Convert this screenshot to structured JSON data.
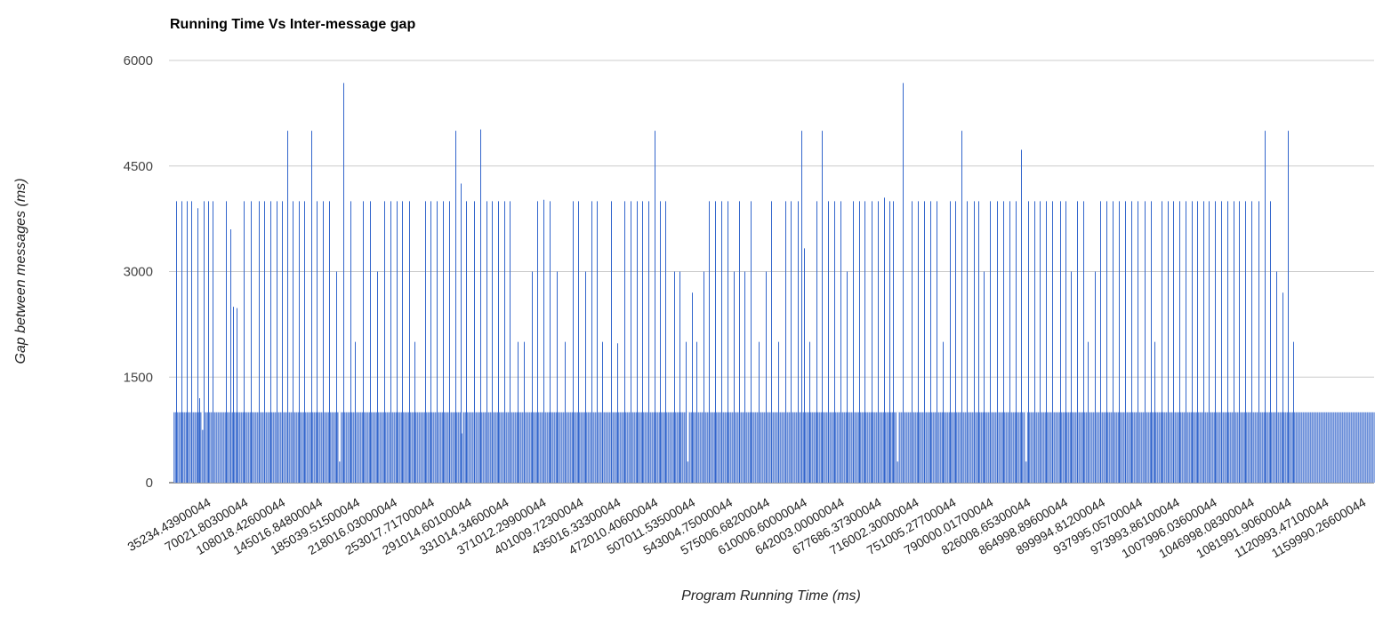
{
  "chart_data": {
    "type": "bar",
    "title": "Running Time Vs Inter-message gap",
    "xlabel": "Program Running Time (ms)",
    "ylabel": "Gap between messages (ms)",
    "ylim": [
      0,
      6000
    ],
    "yticks": [
      "0",
      "1500",
      "3000",
      "4500",
      "6000"
    ],
    "grid": true,
    "legend": "none",
    "bar_color": "#3366cc",
    "baseline_value": 1000,
    "x_tick_labels": [
      "35234.43900044",
      "70021.80300044",
      "108018.42600044",
      "145016.84800044",
      "185039.51500044",
      "218016.03000044",
      "253017.71700044",
      "291014.60100044",
      "331014.34600044",
      "371012.29900044",
      "401009.72300044",
      "435016.33300044",
      "472010.40600044",
      "507011.53500044",
      "543004.75000044",
      "575006.68200044",
      "610006.60000044",
      "642003.00000044",
      "677686.37300044",
      "716002.30000044",
      "751005.27700044",
      "790000.01700044",
      "826008.65300044",
      "864998.89600044",
      "899994.81200044",
      "937995.05700044",
      "973993.86100044",
      "1007996.03600044",
      "1046998.08300044",
      "1081991.90600044",
      "1120993.47100044",
      "1159990.26600044"
    ],
    "x_range": [
      35234.439,
      1174000
    ],
    "spikes": [
      {
        "x": 38000,
        "y": 4000
      },
      {
        "x": 43000,
        "y": 4000
      },
      {
        "x": 48000,
        "y": 4000
      },
      {
        "x": 52000,
        "y": 4000
      },
      {
        "x": 58000,
        "y": 3900
      },
      {
        "x": 60000,
        "y": 1200
      },
      {
        "x": 64000,
        "y": 4000
      },
      {
        "x": 68000,
        "y": 4000
      },
      {
        "x": 72000,
        "y": 4000
      },
      {
        "x": 85000,
        "y": 4000
      },
      {
        "x": 89000,
        "y": 3600
      },
      {
        "x": 92000,
        "y": 2500
      },
      {
        "x": 95000,
        "y": 2480
      },
      {
        "x": 102000,
        "y": 4000
      },
      {
        "x": 109000,
        "y": 4000
      },
      {
        "x": 116000,
        "y": 4000
      },
      {
        "x": 121000,
        "y": 4000
      },
      {
        "x": 127000,
        "y": 4000
      },
      {
        "x": 133000,
        "y": 4000
      },
      {
        "x": 138000,
        "y": 4000
      },
      {
        "x": 143000,
        "y": 5000
      },
      {
        "x": 148000,
        "y": 4000
      },
      {
        "x": 154000,
        "y": 4000
      },
      {
        "x": 159000,
        "y": 4000
      },
      {
        "x": 166000,
        "y": 5000
      },
      {
        "x": 171000,
        "y": 4000
      },
      {
        "x": 177000,
        "y": 4000
      },
      {
        "x": 183000,
        "y": 4000
      },
      {
        "x": 190000,
        "y": 3000
      },
      {
        "x": 196000,
        "y": 5680
      },
      {
        "x": 203000,
        "y": 4000
      },
      {
        "x": 207000,
        "y": 2000
      },
      {
        "x": 215000,
        "y": 4000
      },
      {
        "x": 222000,
        "y": 4000
      },
      {
        "x": 228000,
        "y": 3000
      },
      {
        "x": 235000,
        "y": 4000
      },
      {
        "x": 241000,
        "y": 4000
      },
      {
        "x": 247000,
        "y": 4000
      },
      {
        "x": 252000,
        "y": 4000
      },
      {
        "x": 259000,
        "y": 4000
      },
      {
        "x": 264000,
        "y": 2000
      },
      {
        "x": 274000,
        "y": 4000
      },
      {
        "x": 279000,
        "y": 4000
      },
      {
        "x": 285000,
        "y": 4000
      },
      {
        "x": 291000,
        "y": 4000
      },
      {
        "x": 297000,
        "y": 4000
      },
      {
        "x": 303000,
        "y": 5000
      },
      {
        "x": 308000,
        "y": 4250
      },
      {
        "x": 313000,
        "y": 4000
      },
      {
        "x": 320000,
        "y": 4000
      },
      {
        "x": 326000,
        "y": 5020
      },
      {
        "x": 332000,
        "y": 4000
      },
      {
        "x": 337000,
        "y": 4000
      },
      {
        "x": 343000,
        "y": 4000
      },
      {
        "x": 349000,
        "y": 4000
      },
      {
        "x": 354000,
        "y": 4000
      },
      {
        "x": 362000,
        "y": 2000
      },
      {
        "x": 368000,
        "y": 2000
      },
      {
        "x": 375000,
        "y": 3000
      },
      {
        "x": 380000,
        "y": 4000
      },
      {
        "x": 386000,
        "y": 4020
      },
      {
        "x": 392000,
        "y": 4000
      },
      {
        "x": 399000,
        "y": 3000
      },
      {
        "x": 406000,
        "y": 2000
      },
      {
        "x": 414000,
        "y": 4000
      },
      {
        "x": 419000,
        "y": 4000
      },
      {
        "x": 426000,
        "y": 3000
      },
      {
        "x": 432000,
        "y": 4000
      },
      {
        "x": 437000,
        "y": 4000
      },
      {
        "x": 442000,
        "y": 2000
      },
      {
        "x": 450000,
        "y": 4000
      },
      {
        "x": 456000,
        "y": 1980
      },
      {
        "x": 463000,
        "y": 4000
      },
      {
        "x": 469000,
        "y": 4000
      },
      {
        "x": 475000,
        "y": 4000
      },
      {
        "x": 480000,
        "y": 4000
      },
      {
        "x": 486000,
        "y": 4000
      },
      {
        "x": 492000,
        "y": 5000
      },
      {
        "x": 497000,
        "y": 4000
      },
      {
        "x": 502000,
        "y": 4000
      },
      {
        "x": 510000,
        "y": 3000
      },
      {
        "x": 515000,
        "y": 3000
      },
      {
        "x": 521000,
        "y": 2000
      },
      {
        "x": 527000,
        "y": 2700
      },
      {
        "x": 531000,
        "y": 2000
      },
      {
        "x": 538000,
        "y": 3000
      },
      {
        "x": 543000,
        "y": 4000
      },
      {
        "x": 549000,
        "y": 4000
      },
      {
        "x": 555000,
        "y": 4000
      },
      {
        "x": 561000,
        "y": 4000
      },
      {
        "x": 567000,
        "y": 3000
      },
      {
        "x": 572000,
        "y": 4000
      },
      {
        "x": 577000,
        "y": 3000
      },
      {
        "x": 583000,
        "y": 4000
      },
      {
        "x": 590000,
        "y": 2000
      },
      {
        "x": 597000,
        "y": 3000
      },
      {
        "x": 602000,
        "y": 4000
      },
      {
        "x": 609000,
        "y": 2000
      },
      {
        "x": 616000,
        "y": 4000
      },
      {
        "x": 621000,
        "y": 4000
      },
      {
        "x": 627000,
        "y": 4000
      },
      {
        "x": 631000,
        "y": 5000
      },
      {
        "x": 633000,
        "y": 3330
      },
      {
        "x": 638000,
        "y": 2000
      },
      {
        "x": 645000,
        "y": 4000
      },
      {
        "x": 650000,
        "y": 5000
      },
      {
        "x": 656000,
        "y": 4000
      },
      {
        "x": 662000,
        "y": 4000
      },
      {
        "x": 668000,
        "y": 4000
      },
      {
        "x": 674000,
        "y": 3000
      },
      {
        "x": 680000,
        "y": 4000
      },
      {
        "x": 686000,
        "y": 4000
      },
      {
        "x": 691000,
        "y": 4000
      },
      {
        "x": 697000,
        "y": 4000
      },
      {
        "x": 703000,
        "y": 4000
      },
      {
        "x": 709000,
        "y": 4050
      },
      {
        "x": 714000,
        "y": 4000
      },
      {
        "x": 718000,
        "y": 4000
      },
      {
        "x": 727000,
        "y": 5680
      },
      {
        "x": 735000,
        "y": 4000
      },
      {
        "x": 741000,
        "y": 4000
      },
      {
        "x": 747000,
        "y": 4000
      },
      {
        "x": 753000,
        "y": 4000
      },
      {
        "x": 759000,
        "y": 4000
      },
      {
        "x": 765000,
        "y": 2000
      },
      {
        "x": 772000,
        "y": 4000
      },
      {
        "x": 777000,
        "y": 4000
      },
      {
        "x": 783000,
        "y": 5000
      },
      {
        "x": 788000,
        "y": 4000
      },
      {
        "x": 794000,
        "y": 4000
      },
      {
        "x": 799000,
        "y": 4000
      },
      {
        "x": 804000,
        "y": 3000
      },
      {
        "x": 810000,
        "y": 4000
      },
      {
        "x": 816000,
        "y": 4000
      },
      {
        "x": 822000,
        "y": 4000
      },
      {
        "x": 828000,
        "y": 4000
      },
      {
        "x": 834000,
        "y": 4000
      },
      {
        "x": 839000,
        "y": 4730
      },
      {
        "x": 846000,
        "y": 4000
      },
      {
        "x": 852000,
        "y": 4000
      },
      {
        "x": 857000,
        "y": 4000
      },
      {
        "x": 863000,
        "y": 4000
      },
      {
        "x": 869000,
        "y": 4000
      },
      {
        "x": 876000,
        "y": 4000
      },
      {
        "x": 881000,
        "y": 4000
      },
      {
        "x": 886000,
        "y": 3000
      },
      {
        "x": 892000,
        "y": 4000
      },
      {
        "x": 898000,
        "y": 4000
      },
      {
        "x": 902000,
        "y": 2000
      },
      {
        "x": 909000,
        "y": 3000
      },
      {
        "x": 914000,
        "y": 4000
      },
      {
        "x": 920000,
        "y": 4000
      },
      {
        "x": 926000,
        "y": 4000
      },
      {
        "x": 932000,
        "y": 4000
      },
      {
        "x": 938000,
        "y": 4000
      },
      {
        "x": 944000,
        "y": 4000
      },
      {
        "x": 950000,
        "y": 4000
      },
      {
        "x": 956000,
        "y": 4000
      },
      {
        "x": 962000,
        "y": 4000
      },
      {
        "x": 966000,
        "y": 2000
      },
      {
        "x": 972000,
        "y": 4000
      },
      {
        "x": 978000,
        "y": 4000
      },
      {
        "x": 983000,
        "y": 4000
      },
      {
        "x": 989000,
        "y": 4000
      },
      {
        "x": 995000,
        "y": 4000
      },
      {
        "x": 1001000,
        "y": 4000
      },
      {
        "x": 1006000,
        "y": 4000
      },
      {
        "x": 1012000,
        "y": 4000
      },
      {
        "x": 1017000,
        "y": 4000
      },
      {
        "x": 1023000,
        "y": 4000
      },
      {
        "x": 1029000,
        "y": 4000
      },
      {
        "x": 1035000,
        "y": 4000
      },
      {
        "x": 1041000,
        "y": 4000
      },
      {
        "x": 1046000,
        "y": 4000
      },
      {
        "x": 1052000,
        "y": 4000
      },
      {
        "x": 1058000,
        "y": 4000
      },
      {
        "x": 1064000,
        "y": 4000
      },
      {
        "x": 1070000,
        "y": 5000
      },
      {
        "x": 1075000,
        "y": 4000
      },
      {
        "x": 1081000,
        "y": 3000
      },
      {
        "x": 1087000,
        "y": 2700
      },
      {
        "x": 1092000,
        "y": 5000
      },
      {
        "x": 1097000,
        "y": 2000
      }
    ],
    "dips": [
      {
        "x": 63000,
        "y": 750
      },
      {
        "x": 193000,
        "y": 300
      },
      {
        "x": 308500,
        "y": 700
      },
      {
        "x": 523000,
        "y": 300
      },
      {
        "x": 722000,
        "y": 300
      },
      {
        "x": 844000,
        "y": 300
      }
    ]
  }
}
